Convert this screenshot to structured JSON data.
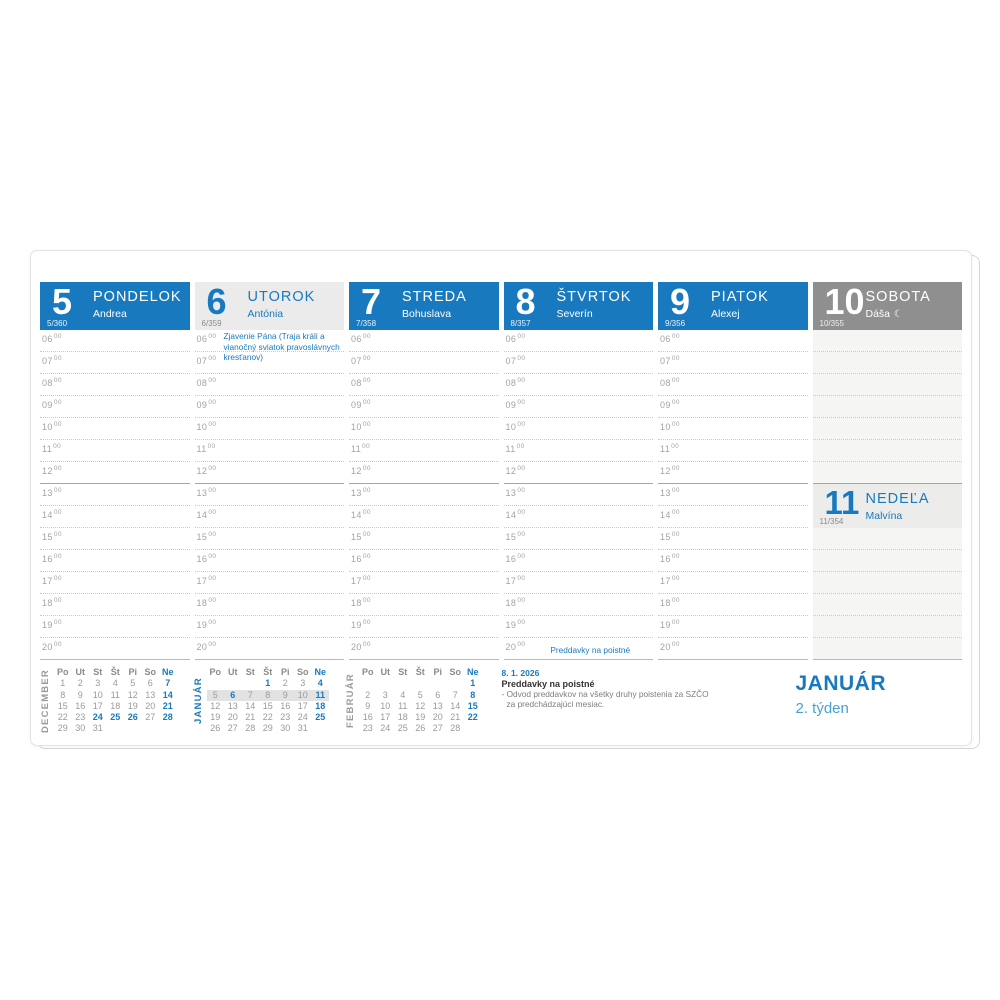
{
  "page": {
    "month_title": "JANUÁR",
    "week_label": "2. týden"
  },
  "colors": {
    "accent_blue": "#1879bf",
    "saturday_gray": "#8f8f8f",
    "holiday_header_bg": "#ebebeb",
    "weekend_column_bg": "#f5f5f3"
  },
  "days": [
    {
      "num": "5",
      "name": "PONDELOK",
      "person": "Andrea",
      "doy": "5/360",
      "style": "blue"
    },
    {
      "num": "6",
      "name": "UTOROK",
      "person": "Antónia",
      "doy": "6/359",
      "style": "light",
      "note": "Zjavenie Pána (Traja králi a vianočný sviatok pravoslávnych kresťanov)"
    },
    {
      "num": "7",
      "name": "STREDA",
      "person": "Bohuslava",
      "doy": "7/358",
      "style": "blue"
    },
    {
      "num": "8",
      "name": "ŠTVRTOK",
      "person": "Severín",
      "doy": "8/357",
      "style": "blue",
      "bottom_note": "Preddavky na poistné"
    },
    {
      "num": "9",
      "name": "PIATOK",
      "person": "Alexej",
      "doy": "9/356",
      "style": "blue"
    },
    {
      "num": "10",
      "name": "SOBOTA",
      "person": "Dáša",
      "doy": "10/355",
      "style": "gray",
      "moon": "☾"
    },
    {
      "num": "11",
      "name": "NEDEĽA",
      "person": "Malvína",
      "doy": "11/354",
      "style": "sunday"
    }
  ],
  "times": {
    "hours": [
      "06",
      "07",
      "08",
      "09",
      "10",
      "11",
      "12",
      "13",
      "14",
      "15",
      "16",
      "17",
      "18",
      "19",
      "20"
    ],
    "minutes": "00"
  },
  "note": {
    "date": "8. 1. 2026",
    "title": "Preddavky na poistné",
    "line1": "- Odvod preddavkov na všetky druhy poistenia za SZČO",
    "line2": "za predchádzajúci mesiac."
  },
  "mini_calendars": [
    {
      "label": "DECEMBER",
      "label_style": "gray",
      "day_headers": [
        "Po",
        "Ut",
        "St",
        "Št",
        "Pi",
        "So",
        "Ne"
      ],
      "weeks": [
        [
          "1",
          "2",
          "3",
          "4",
          "5",
          "6",
          "7"
        ],
        [
          "8",
          "9",
          "10",
          "11",
          "12",
          "13",
          "14"
        ],
        [
          "15",
          "16",
          "17",
          "18",
          "19",
          "20",
          "21"
        ],
        [
          "22",
          "23",
          "24",
          "25",
          "26",
          "27",
          "28"
        ],
        [
          "29",
          "30",
          "31",
          "",
          "",
          "",
          ""
        ]
      ],
      "highlight_days": [
        "7",
        "14",
        "21",
        "24",
        "25",
        "26",
        "28"
      ],
      "highlight_week": -1
    },
    {
      "label": "JANUÁR",
      "label_style": "blue",
      "day_headers": [
        "Po",
        "Ut",
        "St",
        "Št",
        "Pi",
        "So",
        "Ne"
      ],
      "weeks": [
        [
          "",
          "",
          "",
          "1",
          "2",
          "3",
          "4"
        ],
        [
          "5",
          "6",
          "7",
          "8",
          "9",
          "10",
          "11"
        ],
        [
          "12",
          "13",
          "14",
          "15",
          "16",
          "17",
          "18"
        ],
        [
          "19",
          "20",
          "21",
          "22",
          "23",
          "24",
          "25"
        ],
        [
          "26",
          "27",
          "28",
          "29",
          "30",
          "31",
          ""
        ]
      ],
      "highlight_days": [
        "1",
        "4",
        "6",
        "11",
        "18",
        "25"
      ],
      "highlight_week": 1
    },
    {
      "label": "FEBRUÁR",
      "label_style": "gray",
      "day_headers": [
        "Po",
        "Ut",
        "St",
        "Št",
        "Pi",
        "So",
        "Ne"
      ],
      "weeks": [
        [
          "",
          "",
          "",
          "",
          "",
          "",
          "1"
        ],
        [
          "2",
          "3",
          "4",
          "5",
          "6",
          "7",
          "8"
        ],
        [
          "9",
          "10",
          "11",
          "12",
          "13",
          "14",
          "15"
        ],
        [
          "16",
          "17",
          "18",
          "19",
          "20",
          "21",
          "22"
        ],
        [
          "23",
          "24",
          "25",
          "26",
          "27",
          "28",
          ""
        ]
      ],
      "highlight_days": [
        "1",
        "8",
        "15",
        "22"
      ],
      "highlight_week": -1
    }
  ]
}
